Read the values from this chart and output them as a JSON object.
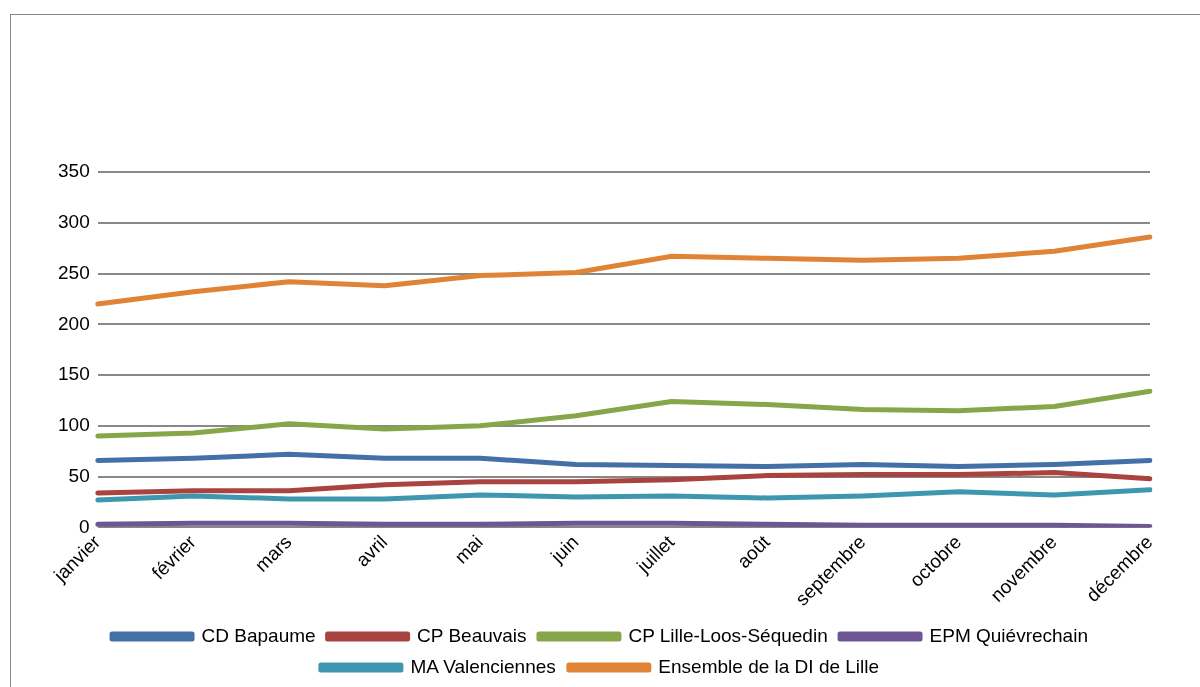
{
  "chart_data": {
    "type": "line",
    "categories": [
      "janvier",
      "février",
      "mars",
      "avril",
      "mai",
      "juin",
      "juillet",
      "août",
      "septembre",
      "octobre",
      "novembre",
      "décembre"
    ],
    "series": [
      {
        "name": "CD Bapaume",
        "color": "#4470a8",
        "values": [
          66,
          68,
          72,
          68,
          68,
          62,
          61,
          60,
          62,
          60,
          62,
          66
        ]
      },
      {
        "name": "CP Beauvais",
        "color": "#a94340",
        "values": [
          34,
          36,
          36,
          42,
          45,
          45,
          47,
          51,
          52,
          52,
          54,
          48
        ]
      },
      {
        "name": "CP Lille-Loos-Séquedin",
        "color": "#87a64a",
        "values": [
          90,
          93,
          102,
          97,
          100,
          110,
          124,
          121,
          116,
          115,
          119,
          134
        ]
      },
      {
        "name": "EPM Quiévrechain",
        "color": "#6e5593",
        "values": [
          3,
          4,
          4,
          3,
          3,
          4,
          4,
          3,
          2,
          2,
          2,
          1
        ]
      },
      {
        "name": "MA Valenciennes",
        "color": "#3d97ae",
        "values": [
          27,
          31,
          28,
          28,
          32,
          30,
          31,
          29,
          31,
          35,
          32,
          37
        ]
      },
      {
        "name": "Ensemble de la DI de Lille",
        "color": "#e08336",
        "values": [
          220,
          232,
          242,
          238,
          248,
          251,
          267,
          265,
          263,
          265,
          272,
          286
        ]
      }
    ],
    "ylim": [
      0,
      350
    ],
    "yticks": [
      0,
      50,
      100,
      150,
      200,
      250,
      300,
      350
    ],
    "grid": "y",
    "legend": "bottom",
    "marker": "none",
    "line_style": "solid"
  }
}
